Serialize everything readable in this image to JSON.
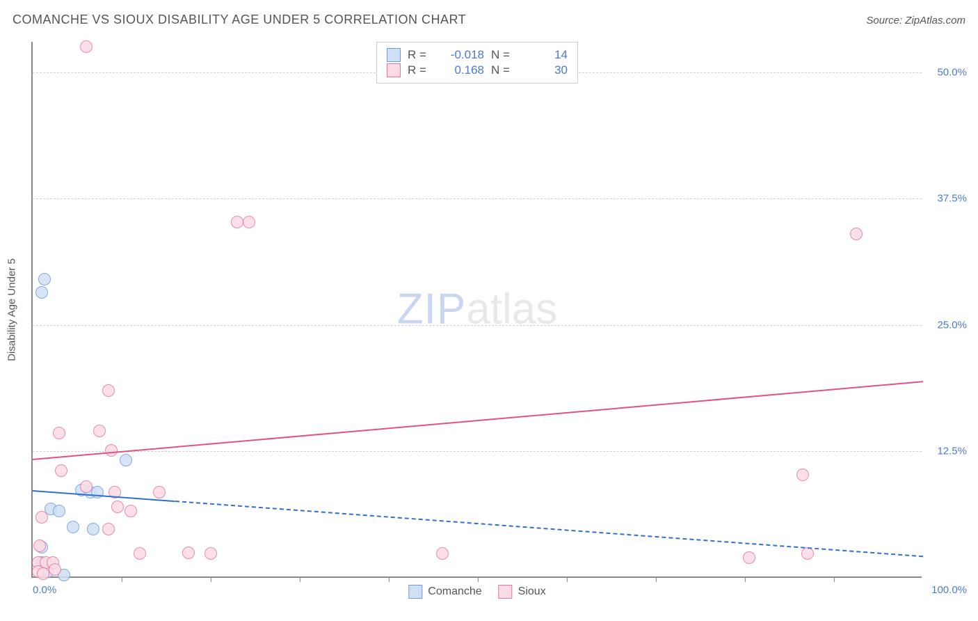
{
  "header": {
    "title": "COMANCHE VS SIOUX DISABILITY AGE UNDER 5 CORRELATION CHART",
    "source_prefix": "Source: ",
    "source_name": "ZipAtlas.com"
  },
  "chart": {
    "type": "scatter",
    "ylabel": "Disability Age Under 5",
    "xlim": [
      0,
      100
    ],
    "ylim": [
      0,
      53
    ],
    "x_ticks_major": [
      0,
      100
    ],
    "x_ticks_minor": [
      10,
      20,
      30,
      40,
      50,
      60,
      70,
      80,
      90
    ],
    "y_gridlines": [
      12.5,
      25.0,
      37.5,
      50.0
    ],
    "x_tick_labels": {
      "left": "0.0%",
      "right": "100.0%"
    },
    "y_tick_labels": [
      "12.5%",
      "25.0%",
      "37.5%",
      "50.0%"
    ],
    "background_color": "#ffffff",
    "grid_color": "#d0d0d0",
    "axis_color": "#888888",
    "label_color": "#4a7bd0",
    "marker_radius": 9,
    "marker_stroke_width": 1.5,
    "series": [
      {
        "name": "Comanche",
        "fill": "#cfe0f5",
        "stroke": "#6a9de0",
        "trend_color": "#2e6fd6",
        "trend": {
          "x1": 0,
          "y1": 8.7,
          "x2": 100,
          "y2": 2.2
        },
        "trend_solid_until_x": 16,
        "R": "-0.018",
        "N": "14",
        "points": [
          {
            "x": 1.3,
            "y": 29.5
          },
          {
            "x": 1.0,
            "y": 28.2
          },
          {
            "x": 10.5,
            "y": 11.6
          },
          {
            "x": 5.5,
            "y": 8.7
          },
          {
            "x": 6.5,
            "y": 8.5
          },
          {
            "x": 7.3,
            "y": 8.5
          },
          {
            "x": 2.0,
            "y": 6.8
          },
          {
            "x": 3.0,
            "y": 6.6
          },
          {
            "x": 4.5,
            "y": 5.0
          },
          {
            "x": 6.8,
            "y": 4.8
          },
          {
            "x": 1.0,
            "y": 3.0
          },
          {
            "x": 1.0,
            "y": 1.5
          },
          {
            "x": 1.7,
            "y": 0.6
          },
          {
            "x": 3.5,
            "y": 0.3
          }
        ]
      },
      {
        "name": "Sioux",
        "fill": "#fbdbe4",
        "stroke": "#e874a0",
        "trend_color": "#e25185",
        "trend": {
          "x1": 0,
          "y1": 11.8,
          "x2": 100,
          "y2": 19.5
        },
        "trend_solid_until_x": 100,
        "R": "0.168",
        "N": "30",
        "points": [
          {
            "x": 6.0,
            "y": 52.5
          },
          {
            "x": 23.0,
            "y": 35.2
          },
          {
            "x": 24.3,
            "y": 35.2
          },
          {
            "x": 92.5,
            "y": 34.0
          },
          {
            "x": 8.5,
            "y": 18.5
          },
          {
            "x": 3.0,
            "y": 14.3
          },
          {
            "x": 7.5,
            "y": 14.5
          },
          {
            "x": 8.8,
            "y": 12.6
          },
          {
            "x": 3.2,
            "y": 10.6
          },
          {
            "x": 86.5,
            "y": 10.2
          },
          {
            "x": 6.0,
            "y": 9.0
          },
          {
            "x": 9.2,
            "y": 8.5
          },
          {
            "x": 14.2,
            "y": 8.5
          },
          {
            "x": 9.5,
            "y": 7.0
          },
          {
            "x": 11.0,
            "y": 6.6
          },
          {
            "x": 1.0,
            "y": 6.0
          },
          {
            "x": 8.5,
            "y": 4.8
          },
          {
            "x": 0.8,
            "y": 3.2
          },
          {
            "x": 12.0,
            "y": 2.4
          },
          {
            "x": 17.5,
            "y": 2.5
          },
          {
            "x": 20.0,
            "y": 2.4
          },
          {
            "x": 46.0,
            "y": 2.4
          },
          {
            "x": 0.6,
            "y": 1.5
          },
          {
            "x": 1.5,
            "y": 1.5
          },
          {
            "x": 2.3,
            "y": 1.5
          },
          {
            "x": 2.5,
            "y": 0.8
          },
          {
            "x": 80.5,
            "y": 2.0
          },
          {
            "x": 87.0,
            "y": 2.4
          },
          {
            "x": 0.6,
            "y": 0.6
          },
          {
            "x": 1.2,
            "y": 0.4
          }
        ]
      }
    ],
    "watermark": {
      "zip": "ZIP",
      "atlas": "atlas"
    },
    "legend_top": {
      "R_label": "R =",
      "N_label": "N ="
    }
  }
}
